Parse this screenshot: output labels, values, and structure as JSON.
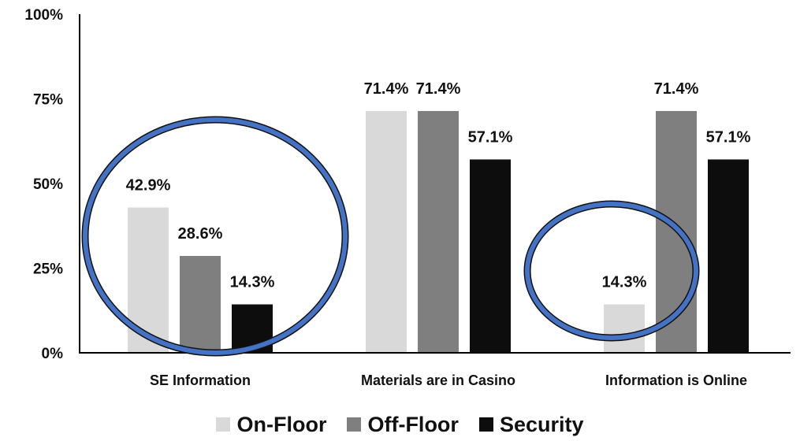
{
  "chart_data": {
    "type": "bar",
    "title": "",
    "xlabel": "",
    "ylabel": "",
    "categories": [
      "SE Information",
      "Materials are in Casino",
      "Information is Online"
    ],
    "series": [
      {
        "name": "On-Floor",
        "values": [
          42.9,
          71.4,
          14.3
        ],
        "labels": [
          "42.9%",
          "71.4%",
          "14.3%"
        ],
        "color": "#d9d9d9"
      },
      {
        "name": "Off-Floor",
        "values": [
          28.6,
          71.4,
          71.4
        ],
        "labels": [
          "28.6%",
          "71.4%",
          "71.4%"
        ],
        "color": "#7f7f7f"
      },
      {
        "name": "Security",
        "values": [
          14.3,
          57.1,
          57.1
        ],
        "labels": [
          "14.3%",
          "57.1%",
          "57.1%"
        ],
        "color": "#0d0d0d"
      }
    ],
    "yticks": [
      0,
      25,
      50,
      75,
      100
    ],
    "ytick_labels": [
      "0%",
      "25%",
      "50%",
      "75%",
      "100%"
    ],
    "ylim": [
      0,
      100
    ],
    "grid": false,
    "legend_position": "bottom",
    "highlight_color": "#4472c4",
    "highlights": [
      {
        "category": "SE Information",
        "shape": "ellipse"
      },
      {
        "category": "Information is Online",
        "shape": "ellipse"
      }
    ]
  }
}
